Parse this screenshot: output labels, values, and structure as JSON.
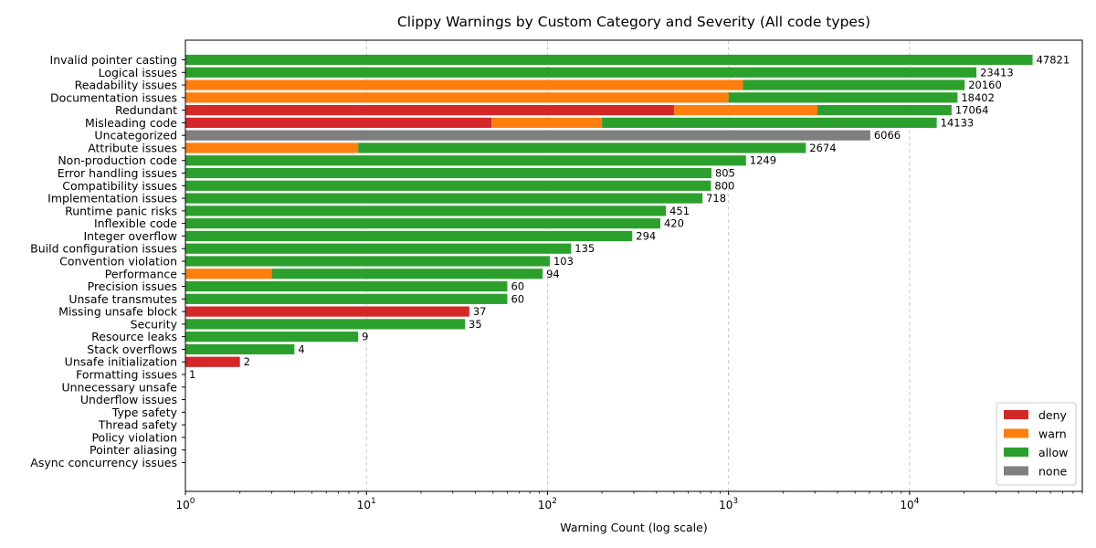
{
  "chart_data": {
    "type": "bar",
    "orientation": "horizontal",
    "stacked": true,
    "title": "Clippy Warnings by Custom Category and Severity (All code types)",
    "xlabel": "Warning Count (log scale)",
    "ylabel": "",
    "xscale": "log",
    "xlim": [
      1,
      90000
    ],
    "xticks": [
      {
        "value": 1,
        "base": "10",
        "exp": "0"
      },
      {
        "value": 10,
        "base": "10",
        "exp": "1"
      },
      {
        "value": 100,
        "base": "10",
        "exp": "2"
      },
      {
        "value": 1000,
        "base": "10",
        "exp": "3"
      },
      {
        "value": 10000,
        "base": "10",
        "exp": "4"
      }
    ],
    "grid": {
      "x": true,
      "y": false,
      "style": "dashed"
    },
    "legend_position": "bottom-right",
    "series_colors": {
      "deny": "#d62728",
      "warn": "#ff7f0e",
      "allow": "#2ca02c",
      "none": "#7f7f7f"
    },
    "legend": [
      "deny",
      "warn",
      "allow",
      "none"
    ],
    "categories": [
      "Invalid pointer casting",
      "Logical issues",
      "Readability issues",
      "Documentation issues",
      "Redundant",
      "Misleading code",
      "Uncategorized",
      "Attribute issues",
      "Non-production code",
      "Error handling issues",
      "Compatibility issues",
      "Implementation issues",
      "Runtime panic risks",
      "Inflexible code",
      "Integer overflow",
      "Build configuration issues",
      "Convention violation",
      "Performance",
      "Precision issues",
      "Unsafe transmutes",
      "Missing unsafe block",
      "Security",
      "Resource leaks",
      "Stack overflows",
      "Unsafe initialization",
      "Formatting issues",
      "Unnecessary unsafe",
      "Underflow issues",
      "Type safety",
      "Thread safety",
      "Policy violation",
      "Pointer aliasing",
      "Async concurrency issues"
    ],
    "series": [
      {
        "name": "deny",
        "values": [
          0,
          0,
          0,
          0,
          500,
          49,
          0,
          0,
          0,
          0,
          0,
          0,
          0,
          0,
          0,
          0,
          0,
          0,
          0,
          0,
          37,
          0,
          0,
          0,
          2,
          0,
          0,
          0,
          0,
          0,
          0,
          0,
          0
        ]
      },
      {
        "name": "warn",
        "values": [
          0,
          0,
          1200,
          1000,
          2600,
          151,
          0,
          9,
          0,
          0,
          0,
          0,
          0,
          0,
          0,
          0,
          0,
          3,
          0,
          0,
          0,
          0,
          0,
          0,
          0,
          0,
          0,
          0,
          0,
          0,
          0,
          0,
          0
        ]
      },
      {
        "name": "allow",
        "values": [
          47821,
          23413,
          18960,
          17402,
          13964,
          13933,
          0,
          2665,
          1249,
          805,
          800,
          718,
          451,
          420,
          294,
          135,
          103,
          91,
          60,
          60,
          0,
          35,
          9,
          4,
          0,
          1,
          0,
          0,
          0,
          0,
          0,
          0,
          0
        ]
      },
      {
        "name": "none",
        "values": [
          0,
          0,
          0,
          0,
          0,
          0,
          6066,
          0,
          0,
          0,
          0,
          0,
          0,
          0,
          0,
          0,
          0,
          0,
          0,
          0,
          0,
          0,
          0,
          0,
          0,
          0,
          0,
          0,
          0,
          0,
          0,
          0,
          0
        ]
      }
    ],
    "totals": [
      47821,
      23413,
      20160,
      18402,
      17064,
      14133,
      6066,
      2674,
      1249,
      805,
      800,
      718,
      451,
      420,
      294,
      135,
      103,
      94,
      60,
      60,
      37,
      35,
      9,
      4,
      2,
      1,
      0,
      0,
      0,
      0,
      0,
      0,
      0
    ]
  }
}
